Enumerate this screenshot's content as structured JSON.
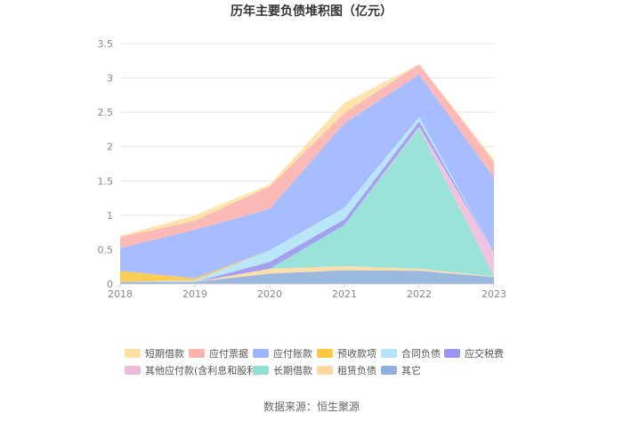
{
  "chart_data": {
    "type": "area",
    "stacked": true,
    "title": "历年主要负债堆积图（亿元）",
    "x": [
      "2018",
      "2019",
      "2020",
      "2021",
      "2022",
      "2023"
    ],
    "ylim": [
      0,
      3.5
    ],
    "yticks": [
      "0",
      "0.5",
      "1",
      "1.5",
      "2",
      "2.5",
      "3",
      "3.5"
    ],
    "grid": true,
    "legend_position": "bottom",
    "series": [
      {
        "name": "其它",
        "color": "#8fb0dd",
        "values": [
          0.03,
          0.03,
          0.15,
          0.2,
          0.19,
          0.1
        ]
      },
      {
        "name": "租赁负债",
        "color": "#fdd9a0",
        "values": [
          0.0,
          0.0,
          0.07,
          0.06,
          0.03,
          0.01
        ]
      },
      {
        "name": "长期借款",
        "color": "#8fe0d6",
        "values": [
          0.0,
          0.0,
          0.0,
          0.6,
          2.05,
          0.0
        ]
      },
      {
        "name": "其他应付款(含利息和股利)",
        "color": "#eebcdb",
        "values": [
          0.0,
          0.0,
          0.0,
          0.0,
          0.02,
          0.35
        ]
      },
      {
        "name": "应交税费",
        "color": "#9b97f0",
        "values": [
          0.0,
          0.0,
          0.1,
          0.08,
          0.08,
          0.0
        ]
      },
      {
        "name": "合同负债",
        "color": "#b2e3fa",
        "values": [
          0.0,
          0.02,
          0.17,
          0.17,
          0.06,
          0.0
        ]
      },
      {
        "name": "预收款项",
        "color": "#fcc844",
        "values": [
          0.16,
          0.03,
          0.0,
          0.0,
          0.0,
          0.0
        ]
      },
      {
        "name": "应付账款",
        "color": "#9eb6ff",
        "values": [
          0.33,
          0.71,
          0.6,
          1.23,
          0.62,
          1.09
        ]
      },
      {
        "name": "应付票据",
        "color": "#fbb3ad",
        "values": [
          0.16,
          0.13,
          0.33,
          0.15,
          0.15,
          0.23
        ]
      },
      {
        "name": "短期借款",
        "color": "#fde1a3",
        "values": [
          0.02,
          0.08,
          0.03,
          0.15,
          0.0,
          0.03
        ]
      }
    ],
    "legend_order": [
      "短期借款",
      "应付票据",
      "应付账款",
      "预收款项",
      "合同负债",
      "应交税费",
      "其他应付款(含利息和股利)",
      "长期借款",
      "租赁负债",
      "其它"
    ]
  },
  "source": "数据来源：恒生聚源"
}
